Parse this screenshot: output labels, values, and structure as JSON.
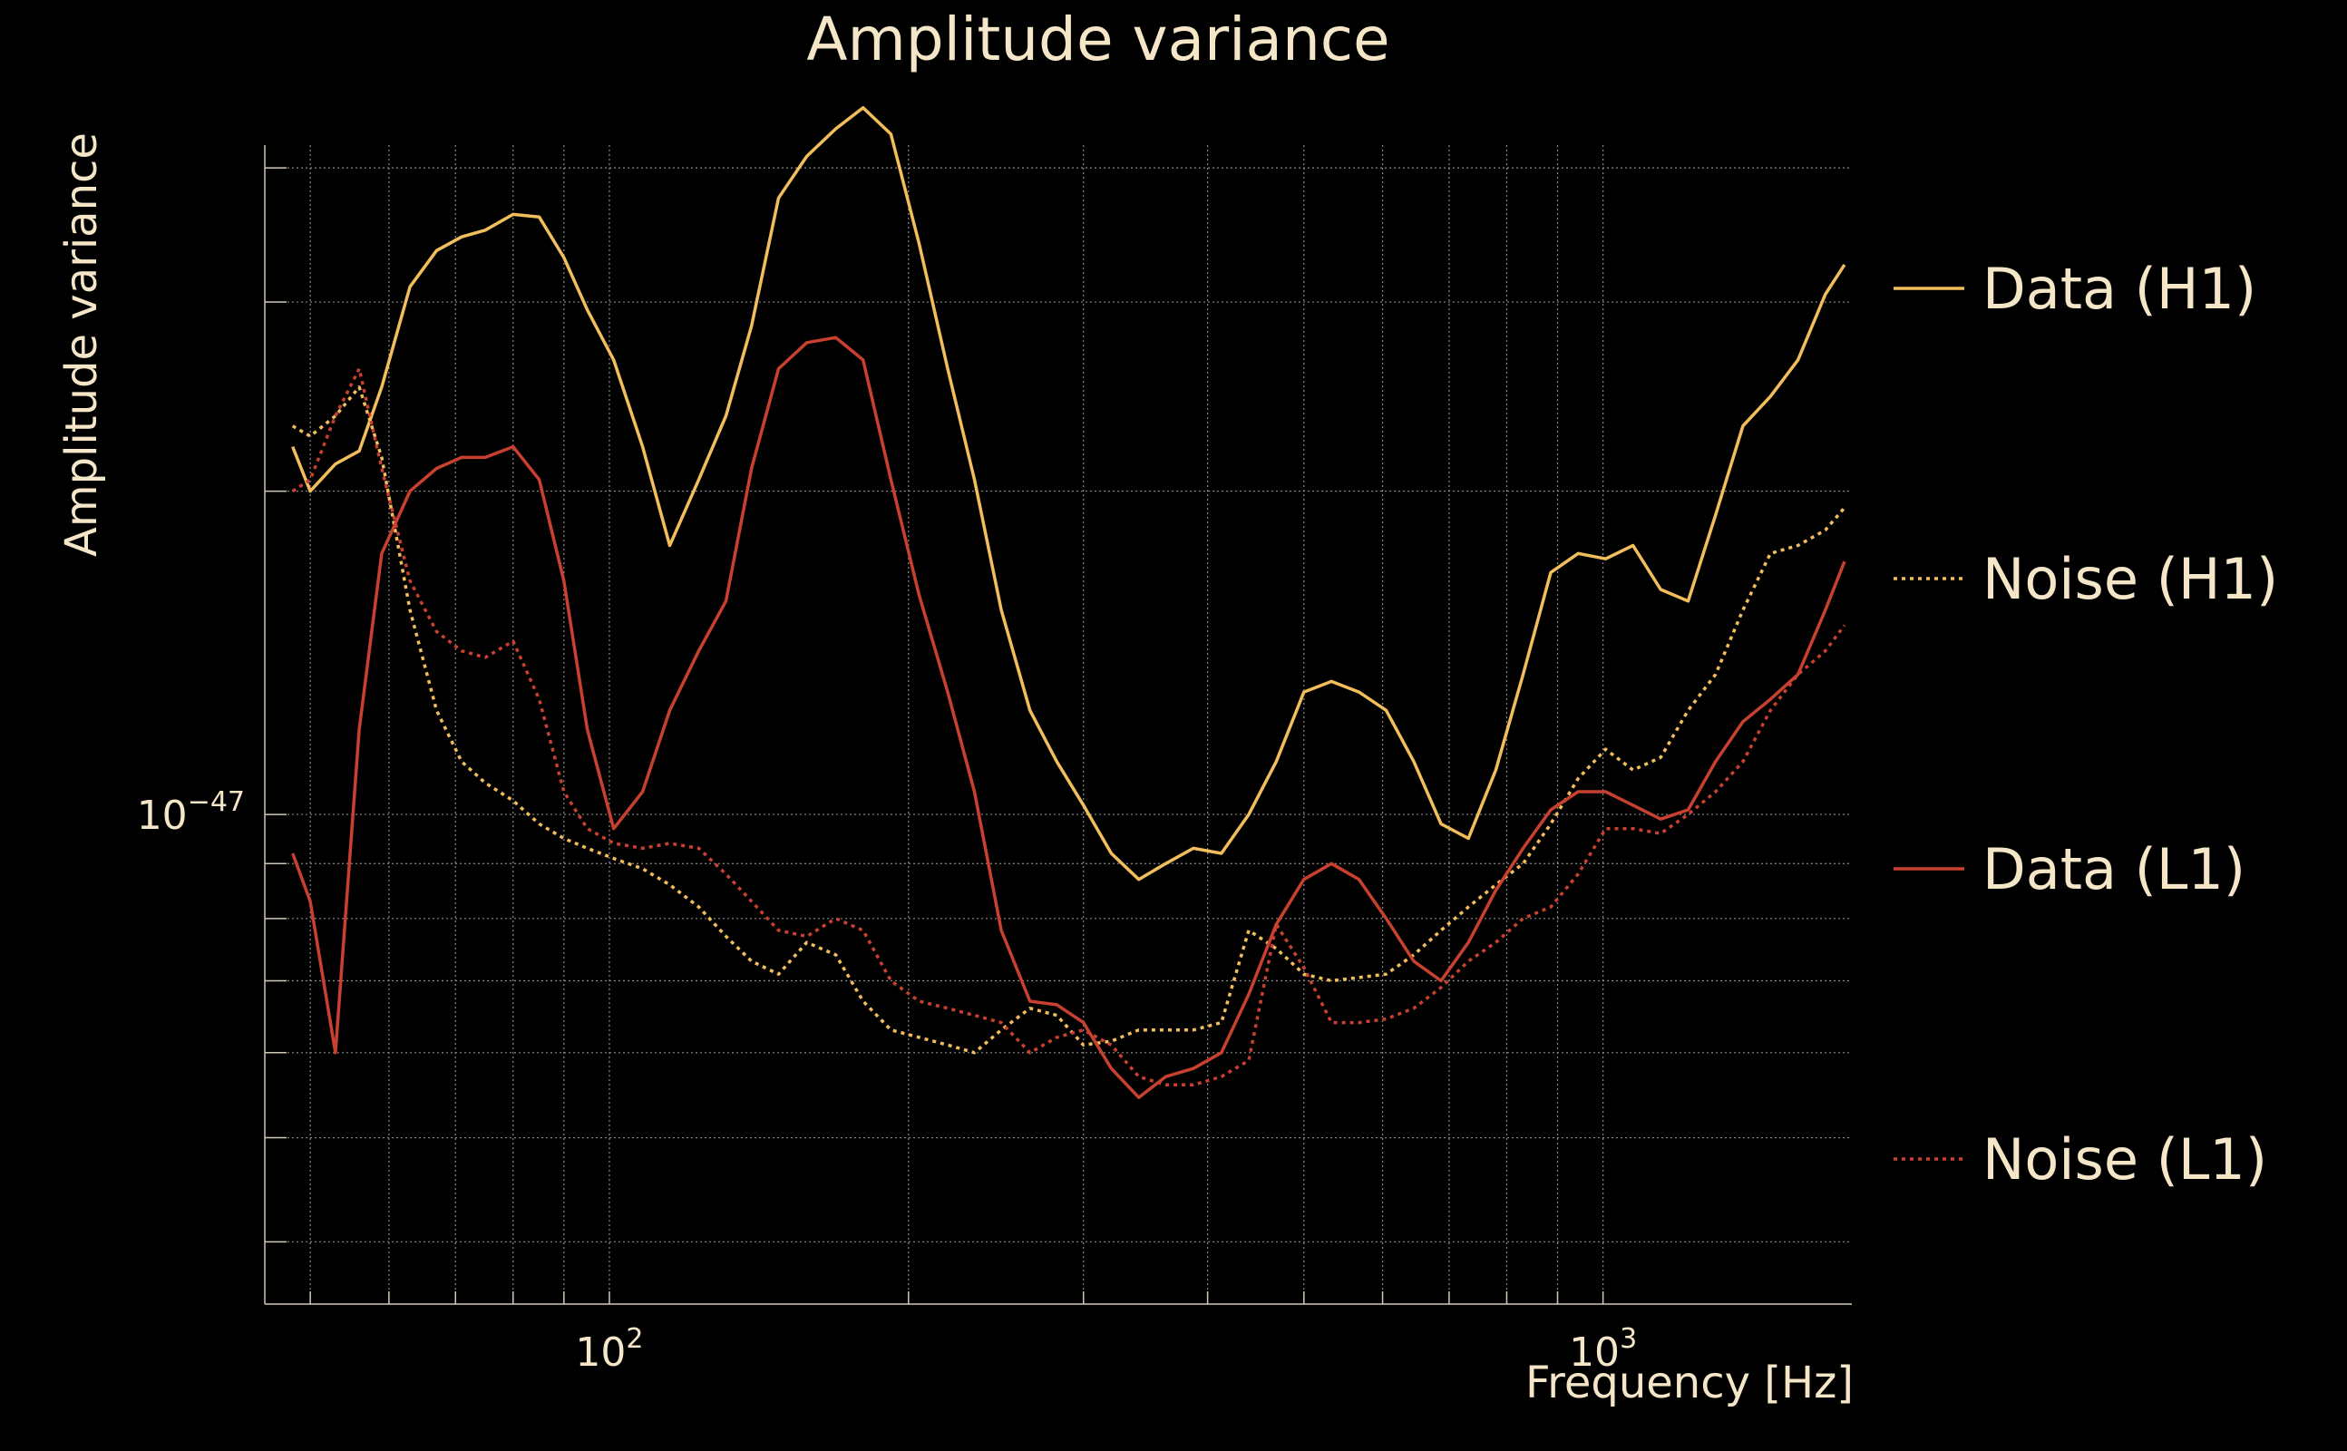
{
  "chart_data": {
    "type": "line",
    "title": "Amplitude variance",
    "xlabel": "Frequency [Hz]",
    "ylabel": "Amplitude variance",
    "xscale": "log",
    "yscale": "log",
    "xlim": [
      45,
      1780
    ],
    "ylim": [
      3.5e-48,
      4.2e-47
    ],
    "x_ticks": [
      {
        "value": 100,
        "base": "10",
        "exp": "2"
      },
      {
        "value": 1000,
        "base": "10",
        "exp": "3"
      }
    ],
    "y_ticks": [
      {
        "value": 1e-47,
        "base": "10",
        "exp": "−47"
      }
    ],
    "grid": true,
    "legend": "right",
    "background": "#000000",
    "text_color": "#f5e6c8",
    "grid_color": "#8a8a8a",
    "series": [
      {
        "name": "Data (H1)",
        "color": "#f2be5c",
        "dash": "solid",
        "x": [
          48,
          50,
          53,
          56,
          59,
          63,
          67,
          71,
          75,
          80,
          85,
          90,
          95,
          101,
          108,
          115,
          123,
          131,
          139,
          148,
          158,
          169,
          180,
          192,
          205,
          219,
          233,
          248,
          265,
          282,
          300,
          320,
          341,
          363,
          387,
          413,
          440,
          469,
          500,
          533,
          568,
          605,
          645,
          687,
          732,
          780,
          831,
          886,
          944,
          1006,
          1072,
          1143,
          1218,
          1298,
          1383,
          1474,
          1571,
          1674,
          1750
        ],
        "y": [
          2.2e-47,
          2e-47,
          2.12e-47,
          2.18e-47,
          2.5e-47,
          3.1e-47,
          3.35e-47,
          3.45e-47,
          3.5e-47,
          3.62e-47,
          3.6e-47,
          3.3e-47,
          2.95e-47,
          2.65e-47,
          2.2e-47,
          1.78e-47,
          2.05e-47,
          2.35e-47,
          2.85e-47,
          3.75e-47,
          4.1e-47,
          4.35e-47,
          4.55e-47,
          4.3e-47,
          3.4e-47,
          2.6e-47,
          2.05e-47,
          1.55e-47,
          1.25e-47,
          1.12e-47,
          1.02e-47,
          9.2e-48,
          8.7e-48,
          9e-48,
          9.3e-48,
          9.2e-48,
          1e-47,
          1.12e-47,
          1.3e-47,
          1.33e-47,
          1.3e-47,
          1.25e-47,
          1.12e-47,
          9.8e-48,
          9.5e-48,
          1.1e-47,
          1.35e-47,
          1.68e-47,
          1.75e-47,
          1.73e-47,
          1.78e-47,
          1.62e-47,
          1.58e-47,
          1.9e-47,
          2.3e-47,
          2.45e-47,
          2.65e-47,
          3.05e-47,
          3.25e-47
        ]
      },
      {
        "name": "Noise (H1)",
        "color": "#f2be5c",
        "dash": "dotted",
        "x": [
          48,
          50,
          53,
          56,
          59,
          63,
          67,
          71,
          75,
          80,
          85,
          90,
          95,
          101,
          108,
          115,
          123,
          131,
          139,
          148,
          158,
          169,
          180,
          192,
          205,
          219,
          233,
          248,
          265,
          282,
          300,
          320,
          341,
          363,
          387,
          413,
          440,
          469,
          500,
          533,
          568,
          605,
          645,
          687,
          732,
          780,
          831,
          886,
          944,
          1006,
          1072,
          1143,
          1218,
          1298,
          1383,
          1474,
          1571,
          1674,
          1750
        ],
        "y": [
          2.3e-47,
          2.25e-47,
          2.35e-47,
          2.5e-47,
          2.15e-47,
          1.55e-47,
          1.25e-47,
          1.12e-47,
          1.07e-47,
          1.03e-47,
          9.8e-48,
          9.5e-48,
          9.3e-48,
          9.1e-48,
          8.9e-48,
          8.6e-48,
          8.2e-48,
          7.7e-48,
          7.3e-48,
          7.1e-48,
          7.6e-48,
          7.4e-48,
          6.7e-48,
          6.3e-48,
          6.2e-48,
          6.1e-48,
          6e-48,
          6.3e-48,
          6.6e-48,
          6.5e-48,
          6.1e-48,
          6.15e-48,
          6.3e-48,
          6.3e-48,
          6.3e-48,
          6.4e-48,
          7.8e-48,
          7.5e-48,
          7.1e-48,
          7e-48,
          7.05e-48,
          7.1e-48,
          7.4e-48,
          7.8e-48,
          8.2e-48,
          8.6e-48,
          9e-48,
          9.8e-48,
          1.08e-47,
          1.15e-47,
          1.1e-47,
          1.13e-47,
          1.25e-47,
          1.35e-47,
          1.55e-47,
          1.75e-47,
          1.78e-47,
          1.84e-47,
          1.93e-47
        ]
      },
      {
        "name": "Data (L1)",
        "color": "#c8402f",
        "dash": "solid",
        "x": [
          48,
          50,
          53,
          56,
          59,
          63,
          67,
          71,
          75,
          80,
          85,
          90,
          95,
          101,
          108,
          115,
          123,
          131,
          139,
          148,
          158,
          169,
          180,
          192,
          205,
          219,
          233,
          248,
          265,
          282,
          300,
          320,
          341,
          363,
          387,
          413,
          440,
          469,
          500,
          533,
          568,
          605,
          645,
          687,
          732,
          780,
          831,
          886,
          944,
          1006,
          1072,
          1143,
          1218,
          1298,
          1383,
          1474,
          1571,
          1674,
          1750
        ],
        "y": [
          9.2e-48,
          8.3e-48,
          6e-48,
          1.2e-47,
          1.75e-47,
          2e-47,
          2.1e-47,
          2.15e-47,
          2.15e-47,
          2.2e-47,
          2.05e-47,
          1.65e-47,
          1.2e-47,
          9.7e-48,
          1.05e-47,
          1.25e-47,
          1.42e-47,
          1.58e-47,
          2.1e-47,
          2.6e-47,
          2.75e-47,
          2.78e-47,
          2.65e-47,
          2.05e-47,
          1.6e-47,
          1.3e-47,
          1.05e-47,
          7.8e-48,
          6.7e-48,
          6.65e-48,
          6.4e-48,
          5.8e-48,
          5.45e-48,
          5.7e-48,
          5.8e-48,
          6e-48,
          6.8e-48,
          7.9e-48,
          8.7e-48,
          9e-48,
          8.7e-48,
          8e-48,
          7.3e-48,
          7e-48,
          7.6e-48,
          8.5e-48,
          9.3e-48,
          1.01e-47,
          1.05e-47,
          1.05e-47,
          1.02e-47,
          9.9e-48,
          1.01e-47,
          1.12e-47,
          1.22e-47,
          1.28e-47,
          1.35e-47,
          1.55e-47,
          1.72e-47
        ]
      },
      {
        "name": "Noise (L1)",
        "color": "#c8402f",
        "dash": "dotted",
        "x": [
          48,
          50,
          53,
          56,
          59,
          63,
          67,
          71,
          75,
          80,
          85,
          90,
          95,
          101,
          108,
          115,
          123,
          131,
          139,
          148,
          158,
          169,
          180,
          192,
          205,
          219,
          233,
          248,
          265,
          282,
          300,
          320,
          341,
          363,
          387,
          413,
          440,
          469,
          500,
          533,
          568,
          605,
          645,
          687,
          732,
          780,
          831,
          886,
          944,
          1006,
          1072,
          1143,
          1218,
          1298,
          1383,
          1474,
          1571,
          1674,
          1750
        ],
        "y": [
          2e-47,
          2.05e-47,
          2.35e-47,
          2.6e-47,
          2.1e-47,
          1.65e-47,
          1.48e-47,
          1.42e-47,
          1.4e-47,
          1.45e-47,
          1.28e-47,
          1.05e-47,
          9.7e-48,
          9.4e-48,
          9.3e-48,
          9.4e-48,
          9.3e-48,
          8.8e-48,
          8.3e-48,
          7.8e-48,
          7.7e-48,
          8e-48,
          7.8e-48,
          7e-48,
          6.7e-48,
          6.6e-48,
          6.5e-48,
          6.4e-48,
          6e-48,
          6.2e-48,
          6.3e-48,
          6.1e-48,
          5.7e-48,
          5.6e-48,
          5.6e-48,
          5.7e-48,
          5.9e-48,
          7.9e-48,
          7.2e-48,
          6.4e-48,
          6.4e-48,
          6.45e-48,
          6.6e-48,
          6.9e-48,
          7.3e-48,
          7.6e-48,
          8e-48,
          8.2e-48,
          8.8e-48,
          9.7e-48,
          9.7e-48,
          9.6e-48,
          1e-47,
          1.05e-47,
          1.12e-47,
          1.25e-47,
          1.35e-47,
          1.42e-47,
          1.5e-47
        ]
      }
    ]
  }
}
